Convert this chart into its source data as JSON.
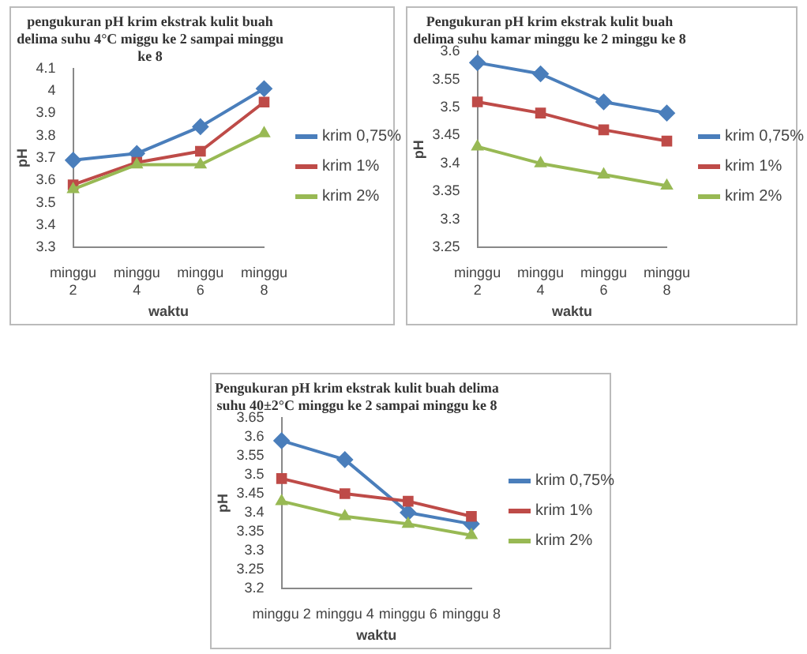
{
  "chart_data": [
    {
      "type": "line",
      "title": "pengukuran pH krim ekstrak kulit buah delima suhu 4°C miggu ke 2 sampai minggu ke 8",
      "xlabel": "waktu",
      "ylabel": "pH",
      "categories": [
        "minggu 2",
        "minggu 4",
        "minggu 6",
        "minggu 8"
      ],
      "ylim": [
        3.3,
        4.1
      ],
      "yticks": [
        3.3,
        3.4,
        3.5,
        3.6,
        3.7,
        3.8,
        3.9,
        4,
        4.1
      ],
      "grid": false,
      "legend": "right",
      "series": [
        {
          "name": "krim 0,75%",
          "color": "#4a7ebb",
          "marker": "diamond",
          "values": [
            3.69,
            3.72,
            3.84,
            4.01
          ]
        },
        {
          "name": "krim 1%",
          "color": "#be4b48",
          "marker": "square",
          "values": [
            3.58,
            3.68,
            3.73,
            3.95
          ]
        },
        {
          "name": "krim 2%",
          "color": "#98b954",
          "marker": "triangle",
          "values": [
            3.56,
            3.67,
            3.67,
            3.81
          ]
        }
      ]
    },
    {
      "type": "line",
      "title": "Pengukuran pH krim ekstrak kulit buah delima suhu kamar minggu ke 2 minggu ke 8",
      "xlabel": "waktu",
      "ylabel": "pH",
      "categories": [
        "minggu 2",
        "minggu 4",
        "minggu 6",
        "minggu 8"
      ],
      "ylim": [
        3.25,
        3.6
      ],
      "yticks": [
        3.25,
        3.3,
        3.35,
        3.4,
        3.45,
        3.5,
        3.55,
        3.6
      ],
      "grid": false,
      "legend": "right",
      "series": [
        {
          "name": "krim 0,75%",
          "color": "#4a7ebb",
          "marker": "diamond",
          "values": [
            3.58,
            3.56,
            3.51,
            3.49
          ]
        },
        {
          "name": "krim 1%",
          "color": "#be4b48",
          "marker": "square",
          "values": [
            3.51,
            3.49,
            3.46,
            3.44
          ]
        },
        {
          "name": "krim 2%",
          "color": "#98b954",
          "marker": "triangle",
          "values": [
            3.43,
            3.4,
            3.38,
            3.36
          ]
        }
      ]
    },
    {
      "type": "line",
      "title": "Pengukuran pH krim ekstrak kulit buah delima suhu 40±2°C minggu ke 2 sampai minggu ke 8",
      "xlabel": "waktu",
      "ylabel": "pH",
      "categories": [
        "minggu 2",
        "minggu 4",
        "minggu 6",
        "minggu 8"
      ],
      "ylim": [
        3.2,
        3.65
      ],
      "yticks": [
        3.2,
        3.25,
        3.3,
        3.35,
        3.4,
        3.45,
        3.5,
        3.55,
        3.6,
        3.65
      ],
      "grid": false,
      "legend": "right",
      "series": [
        {
          "name": "krim 0,75%",
          "color": "#4a7ebb",
          "marker": "diamond",
          "values": [
            3.59,
            3.54,
            3.4,
            3.37
          ]
        },
        {
          "name": "krim 1%",
          "color": "#be4b48",
          "marker": "square",
          "values": [
            3.49,
            3.45,
            3.43,
            3.39
          ]
        },
        {
          "name": "krim 2%",
          "color": "#98b954",
          "marker": "triangle",
          "values": [
            3.43,
            3.39,
            3.37,
            3.34
          ]
        }
      ]
    }
  ]
}
